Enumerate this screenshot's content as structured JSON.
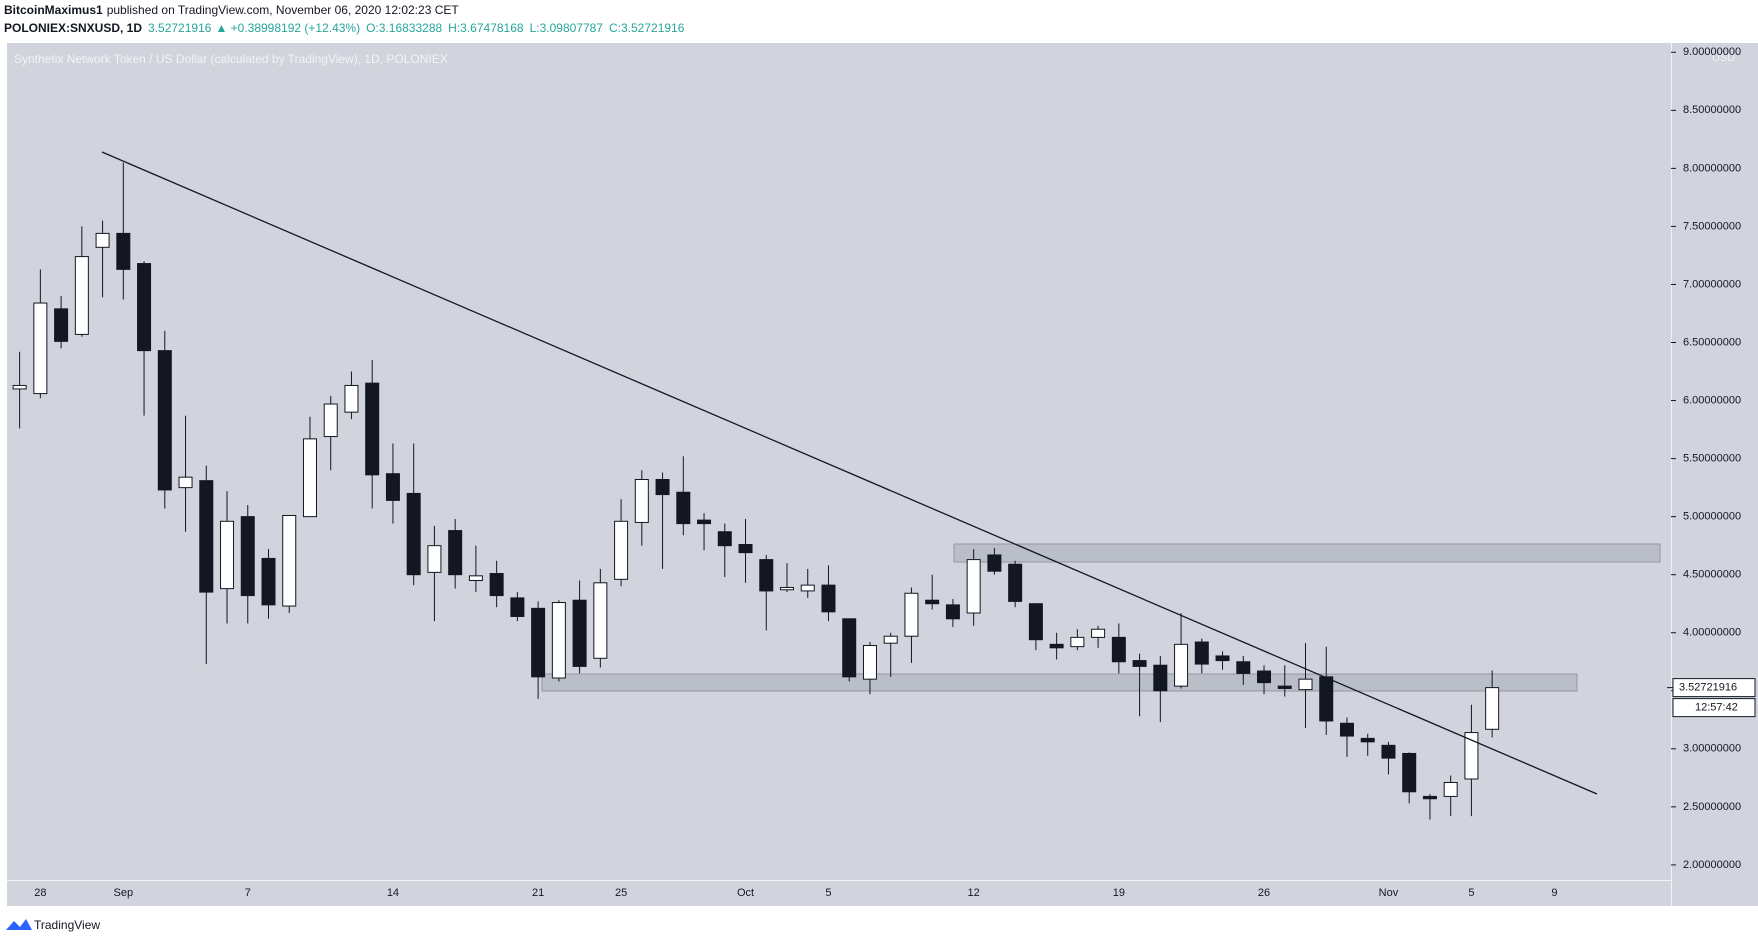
{
  "header": {
    "author": "BitcoinMaximus1",
    "published": "published on TradingView.com, November 06, 2020 12:02:23 CET",
    "symbol": "POLONIEX:SNXUSD, 1D",
    "last": "3.52721916",
    "change": "▲ +0.38998192 (+12.43%)",
    "ohlc": [
      "O:3.16833288",
      "H:3.67478168",
      "L:3.09807787",
      "C:3.52721916"
    ]
  },
  "chart_data": {
    "type": "candlestick",
    "title": "Synthetix Network Token / US Dollar (calculated by TradingView), 1D, POLONIEX",
    "y_unit": "USD",
    "categories": [
      null,
      "28",
      null,
      null,
      null,
      "Sep",
      null,
      null,
      null,
      null,
      null,
      "7",
      null,
      null,
      null,
      null,
      null,
      null,
      "14",
      null,
      null,
      null,
      null,
      null,
      null,
      "21",
      null,
      null,
      null,
      "25",
      null,
      null,
      null,
      null,
      null,
      "Oct",
      null,
      null,
      null,
      "5",
      null,
      null,
      null,
      null,
      null,
      null,
      "12",
      null,
      null,
      null,
      null,
      null,
      null,
      "19",
      null,
      null,
      null,
      null,
      null,
      null,
      "26",
      null,
      null,
      null,
      null,
      null,
      "Nov",
      null,
      null,
      null,
      "5",
      null,
      null,
      null,
      "9",
      null,
      null,
      null,
      null,
      null
    ],
    "open": [
      6.1,
      6.06,
      6.79,
      6.57,
      7.32,
      7.44,
      7.18,
      6.43,
      5.25,
      5.31,
      4.38,
      5.0,
      4.64,
      4.23,
      5.0,
      5.69,
      5.9,
      6.15,
      5.37,
      5.2,
      4.52,
      4.88,
      4.45,
      4.51,
      4.3,
      4.21,
      3.61,
      4.28,
      3.78,
      4.46,
      4.95,
      5.32,
      5.21,
      4.97,
      4.87,
      4.76,
      4.63,
      4.37,
      4.36,
      4.41,
      4.12,
      3.6,
      3.91,
      3.97,
      4.28,
      4.24,
      4.17,
      4.67,
      4.59,
      4.25,
      3.9,
      3.88,
      3.96,
      3.96,
      3.76,
      3.72,
      3.54,
      3.92,
      3.8,
      3.75,
      3.67,
      3.54,
      3.51,
      3.62,
      3.22,
      3.09,
      3.03,
      2.96,
      2.59,
      2.59,
      2.74,
      3.16833288,
      null,
      null,
      null,
      null,
      null,
      null,
      null,
      null
    ],
    "high": [
      6.42,
      7.13,
      6.9,
      7.5,
      7.55,
      8.05,
      7.2,
      6.6,
      5.87,
      5.44,
      5.22,
      5.1,
      4.72,
      5.01,
      5.86,
      6.04,
      6.25,
      6.35,
      5.63,
      5.63,
      4.92,
      4.98,
      4.75,
      4.62,
      4.35,
      4.27,
      4.28,
      4.45,
      4.55,
      5.15,
      5.4,
      5.38,
      5.52,
      5.03,
      4.94,
      4.98,
      4.67,
      4.6,
      4.55,
      4.58,
      4.12,
      3.92,
      4.0,
      4.39,
      4.5,
      4.29,
      4.72,
      4.73,
      4.62,
      4.25,
      4.0,
      4.03,
      4.06,
      4.08,
      3.82,
      3.8,
      4.17,
      3.95,
      3.84,
      3.8,
      3.72,
      3.72,
      3.91,
      3.88,
      3.27,
      3.13,
      3.06,
      2.97,
      2.61,
      2.77,
      3.38,
      3.67478168,
      null,
      null,
      null,
      null,
      null,
      null,
      null,
      null
    ],
    "low": [
      5.76,
      6.02,
      6.45,
      6.55,
      6.89,
      6.87,
      5.87,
      5.07,
      4.87,
      3.73,
      4.08,
      4.08,
      4.12,
      4.17,
      5.0,
      5.4,
      5.84,
      5.07,
      4.94,
      4.41,
      4.1,
      4.38,
      4.35,
      4.22,
      4.1,
      3.43,
      3.58,
      3.65,
      3.7,
      4.4,
      4.75,
      4.55,
      4.84,
      4.71,
      4.48,
      4.43,
      4.02,
      4.35,
      4.3,
      4.1,
      3.58,
      3.47,
      3.62,
      3.74,
      4.2,
      4.05,
      4.06,
      4.5,
      4.22,
      3.85,
      3.77,
      3.85,
      3.87,
      3.65,
      3.28,
      3.23,
      3.52,
      3.65,
      3.68,
      3.55,
      3.47,
      3.45,
      3.18,
      3.12,
      2.93,
      2.94,
      2.78,
      2.53,
      2.39,
      2.42,
      2.42,
      3.09807787,
      null,
      null,
      null,
      null,
      null,
      null,
      null,
      null
    ],
    "close": [
      6.13,
      6.84,
      6.51,
      7.24,
      7.44,
      7.13,
      6.43,
      5.23,
      5.34,
      4.35,
      4.96,
      4.32,
      4.24,
      5.01,
      5.67,
      5.97,
      6.13,
      5.36,
      5.14,
      4.5,
      4.75,
      4.5,
      4.49,
      4.32,
      4.14,
      3.62,
      4.26,
      3.71,
      4.43,
      4.96,
      5.32,
      5.19,
      4.94,
      4.94,
      4.75,
      4.69,
      4.36,
      4.39,
      4.41,
      4.18,
      3.62,
      3.89,
      3.97,
      4.34,
      4.25,
      4.12,
      4.63,
      4.53,
      4.27,
      3.94,
      3.87,
      3.96,
      4.03,
      3.75,
      3.71,
      3.5,
      3.9,
      3.73,
      3.76,
      3.65,
      3.57,
      3.52,
      3.6,
      3.24,
      3.11,
      3.06,
      2.92,
      2.63,
      2.57,
      2.71,
      3.14,
      3.52721916,
      null,
      null,
      null,
      null,
      null,
      null,
      null,
      null
    ],
    "up_color": "#ffffff",
    "down_color": "#131722",
    "ylim": [
      1.87,
      9.08
    ],
    "yticks": [
      {
        "value": 2,
        "label": "2.00000000"
      },
      {
        "value": 2.5,
        "label": "2.50000000"
      },
      {
        "value": 3,
        "label": "3.00000000"
      },
      {
        "value": 3.5,
        "label": "3.50000000"
      },
      {
        "value": 4,
        "label": "4.00000000"
      },
      {
        "value": 4.5,
        "label": "4.50000000"
      },
      {
        "value": 5,
        "label": "5.00000000"
      },
      {
        "value": 5.5,
        "label": "5.50000000"
      },
      {
        "value": 6,
        "label": "6.00000000"
      },
      {
        "value": 6.5,
        "label": "6.50000000"
      },
      {
        "value": 7,
        "label": "7.00000000"
      },
      {
        "value": 7.5,
        "label": "7.50000000"
      },
      {
        "value": 8,
        "label": "8.00000000"
      },
      {
        "value": 8.5,
        "label": "8.50000000"
      },
      {
        "value": 9,
        "label": "9.00000000"
      }
    ],
    "last_price": {
      "value": 3.52721916,
      "label": "3.52721916"
    },
    "countdown": "12:57:42",
    "grid": false
  },
  "footer": {
    "brand": "TradingView"
  }
}
